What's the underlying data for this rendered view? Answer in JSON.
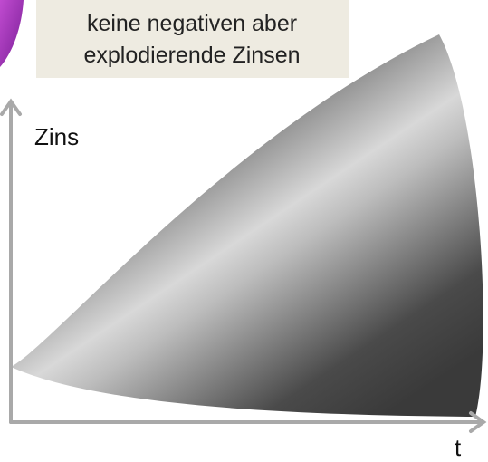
{
  "callout": {
    "lines": [
      "keine negativen aber",
      "explodierende Zinsen"
    ]
  },
  "axes": {
    "y_label": "Zins",
    "x_label": "t"
  }
}
